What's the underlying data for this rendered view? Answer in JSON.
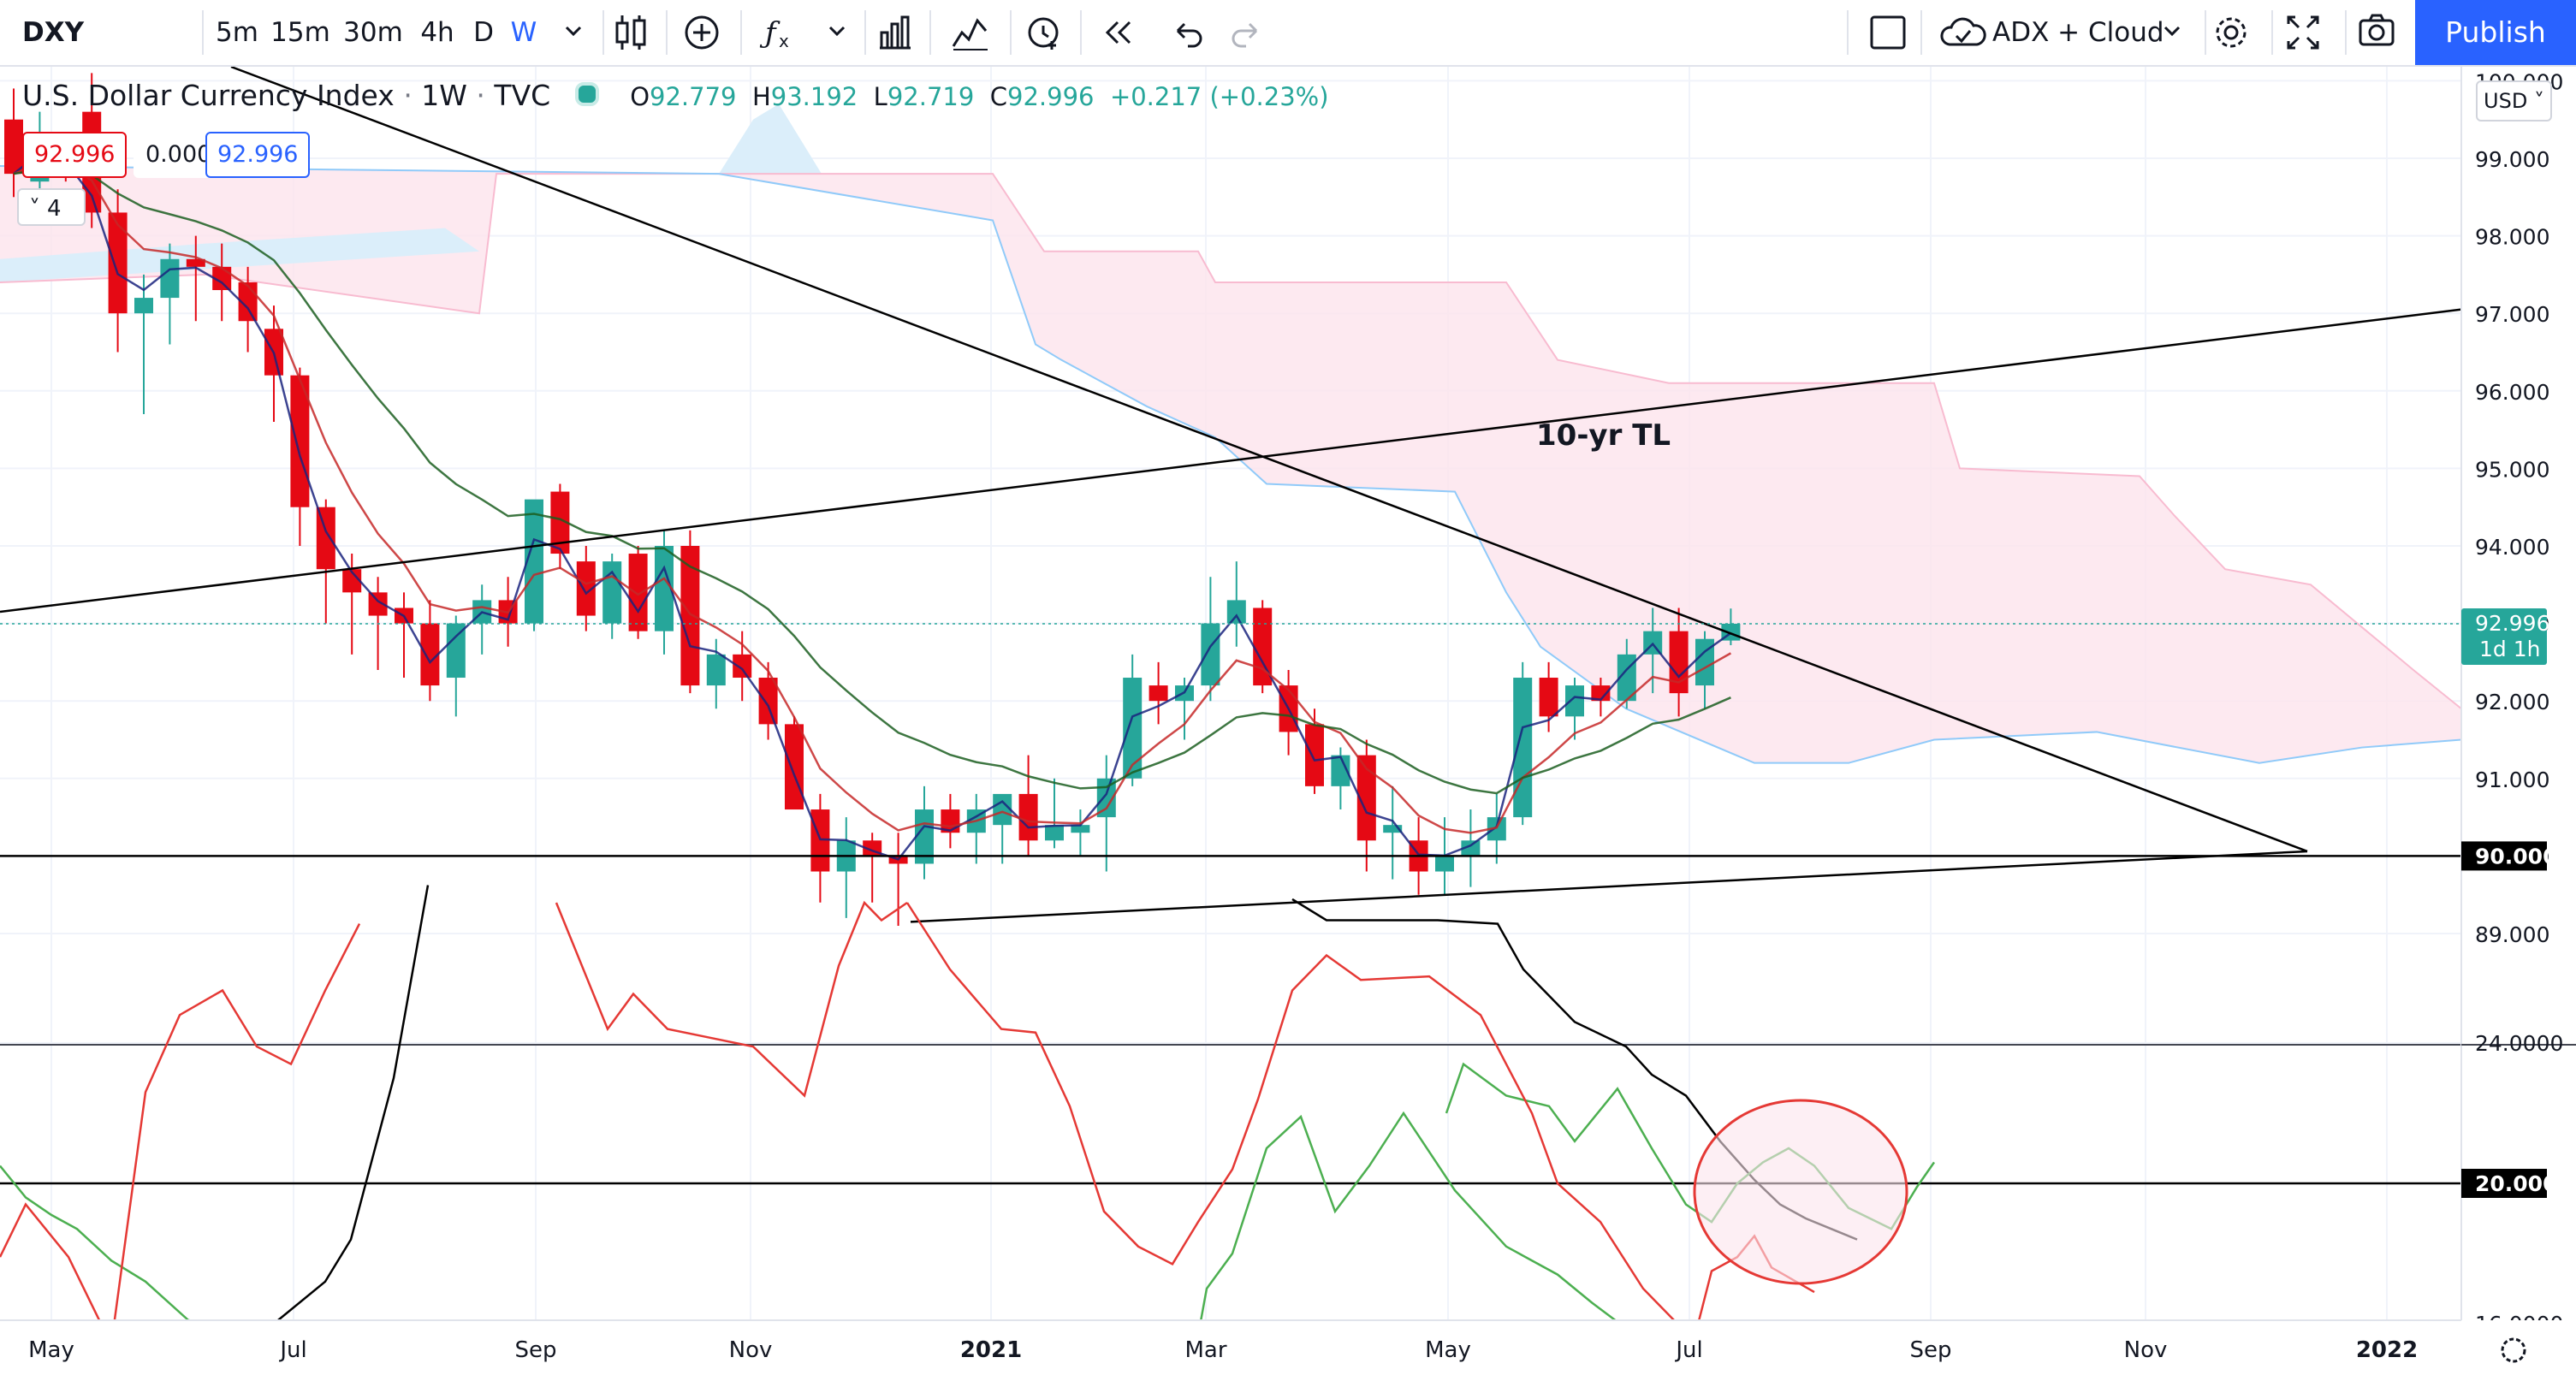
{
  "toolbar": {
    "symbol": "DXY",
    "intervals": [
      "5m",
      "15m",
      "30m",
      "4h",
      "D",
      "W"
    ],
    "active_interval": "W",
    "indicator_template": "ADX + Cloud",
    "publish_label": "Publish"
  },
  "legend": {
    "title": "U.S. Dollar Currency Index",
    "interval": "1W",
    "exchange": "TVC",
    "open_label": "O",
    "open": "92.779",
    "high_label": "H",
    "high": "93.192",
    "low_label": "L",
    "low": "92.719",
    "close_label": "C",
    "close": "92.996",
    "change": "+0.217 (+0.23%)",
    "bid": "92.996",
    "spread": "0.000",
    "ask": "92.996",
    "collapse_count": "4"
  },
  "currency": "USD",
  "colors": {
    "up": "#26a69a",
    "down": "#e50914",
    "accent": "#2962ff",
    "cloud": "#fce4ec",
    "adx": "#000000",
    "di_plus": "#4caf50",
    "di_minus": "#e53935"
  },
  "price_axis": {
    "ticks": [
      "100.000",
      "99.000",
      "98.000",
      "97.000",
      "96.000",
      "95.000",
      "94.000",
      "93.000",
      "92.000",
      "91.000",
      "90.000",
      "89.000"
    ],
    "last_price": "92.996",
    "countdown": "1d 1h",
    "level_label": "90.000"
  },
  "indicator_axis": {
    "ticks": [
      "24.0000",
      "16.0000"
    ],
    "level_label": "20.0000"
  },
  "time_axis": [
    "May",
    "Jul",
    "Sep",
    "Nov",
    "2021",
    "Mar",
    "May",
    "Jul",
    "Sep",
    "Nov",
    "2022"
  ],
  "annotations": {
    "trendline_label": "10-yr TL"
  },
  "icons": [
    "chevron-down-icon",
    "candles-icon",
    "plus-circle-icon",
    "fx-icon",
    "bar-chart-icon",
    "indicators-icon",
    "alert-icon",
    "replay-icon",
    "undo-icon",
    "redo-icon",
    "layout-icon",
    "cloud-check-icon",
    "gear-icon",
    "fullscreen-icon",
    "camera-icon"
  ],
  "chart_data": {
    "type": "candlestick",
    "symbol": "DXY",
    "interval": "1W",
    "ylim": [
      88.6,
      101.0
    ],
    "x_labels": [
      "May",
      "Jul",
      "Sep",
      "Nov",
      "2021",
      "Mar",
      "May",
      "Jul",
      "Sep",
      "Nov",
      "2022"
    ],
    "candles_ohlc": [
      [
        99.5,
        99.9,
        98.5,
        98.8
      ],
      [
        98.7,
        99.6,
        98.5,
        99.2
      ],
      [
        99.1,
        99.3,
        98.7,
        98.9
      ],
      [
        99.6,
        100.1,
        98.1,
        98.3
      ],
      [
        98.3,
        98.6,
        96.5,
        97.0
      ],
      [
        97.0,
        97.5,
        95.7,
        97.2
      ],
      [
        97.2,
        97.9,
        96.6,
        97.7
      ],
      [
        97.7,
        98.0,
        96.9,
        97.6
      ],
      [
        97.6,
        97.9,
        96.9,
        97.3
      ],
      [
        97.4,
        97.6,
        96.5,
        96.9
      ],
      [
        96.8,
        97.1,
        95.6,
        96.2
      ],
      [
        96.2,
        96.3,
        94.0,
        94.5
      ],
      [
        94.5,
        94.6,
        93.0,
        93.7
      ],
      [
        93.7,
        93.9,
        92.6,
        93.4
      ],
      [
        93.4,
        93.6,
        92.4,
        93.1
      ],
      [
        93.2,
        93.4,
        92.3,
        93.0
      ],
      [
        93.0,
        93.3,
        92.0,
        92.2
      ],
      [
        92.3,
        93.1,
        91.8,
        93.0
      ],
      [
        93.0,
        93.5,
        92.6,
        93.3
      ],
      [
        93.3,
        93.6,
        92.7,
        93.0
      ],
      [
        93.0,
        94.5,
        92.9,
        94.6
      ],
      [
        94.7,
        94.8,
        93.7,
        93.9
      ],
      [
        93.8,
        94.0,
        92.9,
        93.1
      ],
      [
        93.0,
        93.9,
        92.8,
        93.8
      ],
      [
        93.9,
        94.0,
        92.8,
        92.9
      ],
      [
        92.9,
        94.2,
        92.6,
        94.0
      ],
      [
        94.0,
        94.2,
        92.1,
        92.2
      ],
      [
        92.2,
        92.8,
        91.9,
        92.6
      ],
      [
        92.6,
        92.9,
        92.0,
        92.3
      ],
      [
        92.3,
        92.5,
        91.5,
        91.7
      ],
      [
        91.7,
        91.8,
        90.8,
        90.6
      ],
      [
        90.6,
        90.8,
        89.4,
        89.8
      ],
      [
        89.8,
        90.5,
        89.2,
        90.2
      ],
      [
        90.2,
        90.3,
        89.4,
        90.0
      ],
      [
        90.0,
        90.3,
        89.1,
        89.9
      ],
      [
        89.9,
        90.9,
        89.7,
        90.6
      ],
      [
        90.6,
        90.8,
        90.1,
        90.3
      ],
      [
        90.3,
        90.8,
        89.9,
        90.6
      ],
      [
        90.4,
        90.6,
        89.9,
        90.8
      ],
      [
        90.8,
        91.3,
        90.0,
        90.2
      ],
      [
        90.2,
        91.0,
        90.1,
        90.4
      ],
      [
        90.3,
        90.6,
        90.0,
        90.4
      ],
      [
        90.5,
        91.3,
        89.8,
        91.0
      ],
      [
        91.0,
        92.6,
        90.9,
        92.3
      ],
      [
        92.2,
        92.5,
        91.7,
        92.0
      ],
      [
        92.0,
        92.3,
        91.5,
        92.2
      ],
      [
        92.2,
        93.6,
        92.0,
        93.0
      ],
      [
        93.0,
        93.8,
        92.7,
        93.3
      ],
      [
        93.2,
        93.3,
        92.1,
        92.2
      ],
      [
        92.2,
        92.4,
        91.3,
        91.6
      ],
      [
        91.7,
        91.9,
        90.8,
        90.9
      ],
      [
        90.9,
        91.4,
        90.6,
        91.3
      ],
      [
        91.3,
        91.5,
        89.8,
        90.2
      ],
      [
        90.3,
        90.9,
        89.7,
        90.4
      ],
      [
        90.2,
        90.5,
        89.5,
        89.8
      ],
      [
        89.8,
        90.5,
        89.5,
        90.0
      ],
      [
        90.0,
        90.6,
        89.6,
        90.2
      ],
      [
        90.2,
        90.8,
        89.9,
        90.5
      ],
      [
        90.5,
        92.5,
        90.4,
        92.3
      ],
      [
        92.3,
        92.5,
        91.6,
        91.8
      ],
      [
        91.8,
        92.3,
        91.5,
        92.2
      ],
      [
        92.2,
        92.3,
        91.8,
        92.0
      ],
      [
        92.0,
        92.8,
        91.9,
        92.6
      ],
      [
        92.6,
        93.2,
        92.1,
        92.9
      ],
      [
        92.9,
        93.2,
        91.8,
        92.1
      ],
      [
        92.2,
        92.9,
        91.9,
        92.8
      ],
      [
        92.779,
        93.192,
        92.719,
        92.996
      ]
    ],
    "horizontal_levels": [
      90.0
    ],
    "indicator": {
      "name": "ADX",
      "ylim": [
        13.0,
        28.0
      ],
      "ticks": [
        24.0,
        16.0
      ],
      "level": 20.0
    },
    "annotations": [
      "10-yr TL"
    ]
  }
}
